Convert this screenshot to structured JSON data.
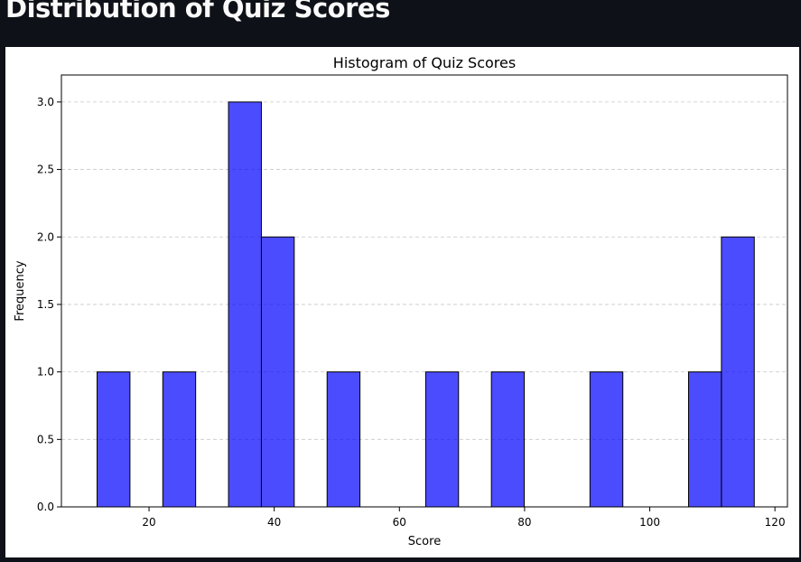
{
  "page": {
    "title": "Distribution of Quiz Scores"
  },
  "colors": {
    "page_background": "#0e1117",
    "page_title": "#fafafa",
    "bar_fill": "#0000ff",
    "bar_edge": "#000000",
    "grid": "#b0b0b0"
  },
  "chart_data": {
    "type": "bar",
    "title": "Histogram of Quiz Scores",
    "xlabel": "Score",
    "ylabel": "Frequency",
    "xlim": [
      6,
      122
    ],
    "ylim": [
      0,
      3.2
    ],
    "x_ticks": [
      20,
      40,
      60,
      80,
      100,
      120
    ],
    "y_ticks": [
      0.0,
      0.5,
      1.0,
      1.5,
      2.0,
      2.5,
      3.0
    ],
    "y_tick_labels": [
      "0.0",
      "0.5",
      "1.0",
      "1.5",
      "2.0",
      "2.5",
      "3.0"
    ],
    "grid": "horizontal dashed",
    "bar_alpha": 0.7,
    "bins": [
      {
        "start": 11.7,
        "end": 16.95,
        "count": 1
      },
      {
        "start": 22.2,
        "end": 27.45,
        "count": 1
      },
      {
        "start": 32.7,
        "end": 37.95,
        "count": 3
      },
      {
        "start": 37.95,
        "end": 43.2,
        "count": 2
      },
      {
        "start": 48.45,
        "end": 53.7,
        "count": 1
      },
      {
        "start": 64.2,
        "end": 69.45,
        "count": 1
      },
      {
        "start": 74.7,
        "end": 79.95,
        "count": 1
      },
      {
        "start": 90.45,
        "end": 95.7,
        "count": 1
      },
      {
        "start": 106.2,
        "end": 111.45,
        "count": 1
      },
      {
        "start": 111.45,
        "end": 116.7,
        "count": 2
      }
    ]
  }
}
